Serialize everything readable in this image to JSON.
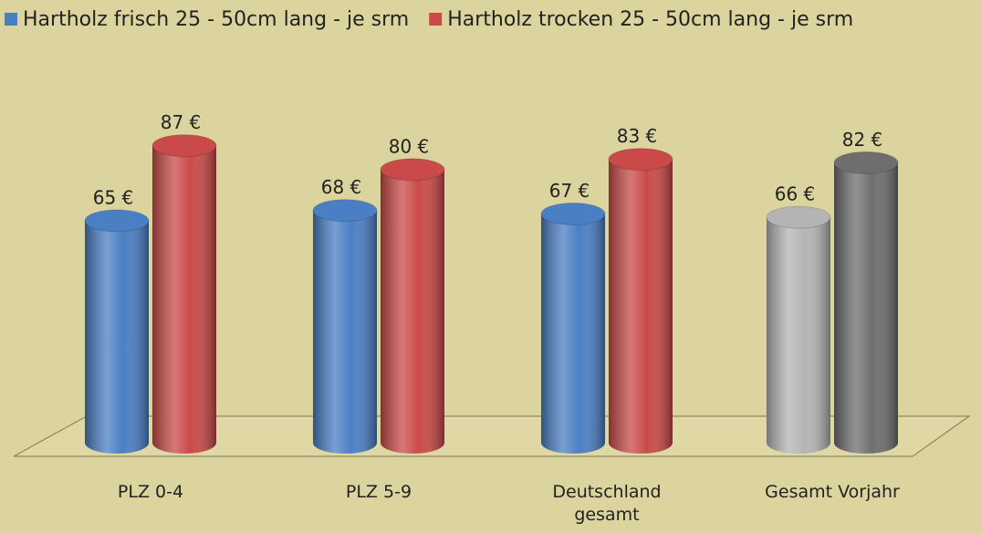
{
  "chart_data": {
    "type": "bar",
    "categories": [
      "PLZ 0-4",
      "PLZ 5-9",
      "Deutschland gesamt",
      "Gesamt Vorjahr"
    ],
    "series": [
      {
        "name": "Hartholz frisch  25 - 50cm lang - je srm",
        "color": "#4a7fc4",
        "colors": [
          "#4a7fc4",
          "#4a7fc4",
          "#4a7fc4",
          "#b4b4b4"
        ],
        "values": [
          65,
          68,
          67,
          66
        ],
        "value_labels": [
          "65 €",
          "68 €",
          "67 €",
          "66 €"
        ]
      },
      {
        "name": "Hartholz trocken 25 - 50cm lang - je srm",
        "color": "#c94a48",
        "colors": [
          "#c94a48",
          "#c94a48",
          "#c94a48",
          "#6e6e6e"
        ],
        "values": [
          87,
          80,
          83,
          82
        ],
        "value_labels": [
          "87 €",
          "80 €",
          "83 €",
          "82 €"
        ]
      }
    ],
    "ylim": [
      0,
      100
    ],
    "legend": "top"
  }
}
